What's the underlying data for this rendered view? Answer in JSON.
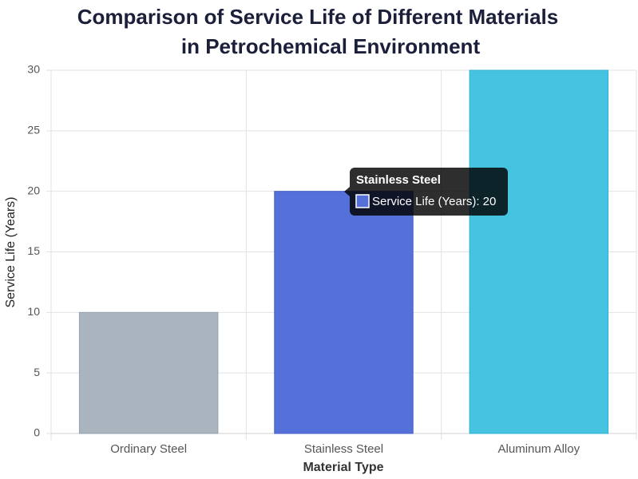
{
  "chart_data": {
    "type": "bar",
    "title": [
      "Comparison of Service Life of Different Materials",
      "in Petrochemical Environment"
    ],
    "x_label": "Material Type",
    "y_label": "Service Life (Years)",
    "categories": [
      "Ordinary Steel",
      "Stainless Steel",
      "Aluminum Alloy"
    ],
    "values": [
      10,
      20,
      30
    ],
    "colors": [
      "#aab4bf",
      "#5570d9",
      "#45c3e0"
    ],
    "border_colors": [
      "#97a2ae",
      "#4560c8",
      "#2fb3d3"
    ],
    "ylim": [
      0,
      30
    ],
    "yticks": [
      0,
      5,
      10,
      15,
      20,
      25,
      30
    ],
    "grid": true,
    "tooltip": {
      "title": "Stainless Steel",
      "body": "Service Life (Years): 20"
    }
  }
}
